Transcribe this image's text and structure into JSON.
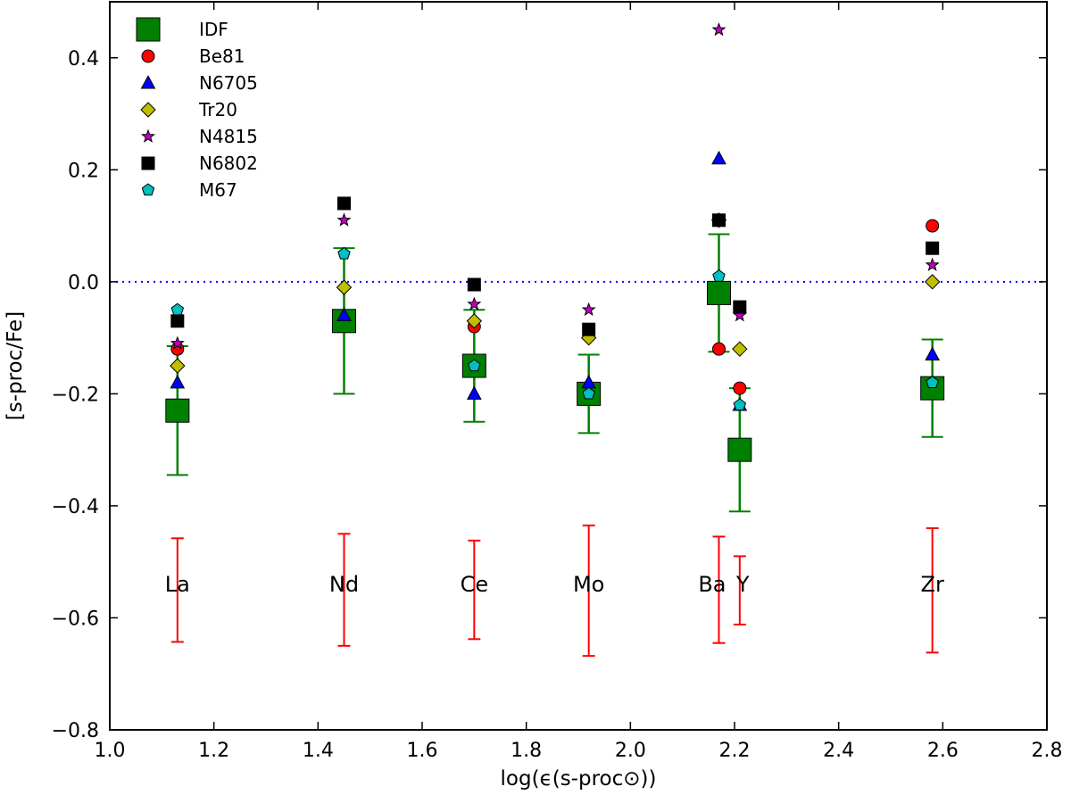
{
  "chart_data": {
    "type": "scatter",
    "title": "",
    "xlabel": "log(ϵ(s-proc⊙))",
    "ylabel": "[s-proc/Fe]",
    "xlim": [
      1.0,
      2.8
    ],
    "ylim": [
      -0.8,
      0.5
    ],
    "xticks": [
      1.0,
      1.2,
      1.4,
      1.6,
      1.8,
      2.0,
      2.2,
      2.4,
      2.6,
      2.8
    ],
    "xtick_labels": [
      "1.0",
      "1.2",
      "1.4",
      "1.6",
      "1.8",
      "2.0",
      "2.2",
      "2.4",
      "2.6",
      "2.8"
    ],
    "yticks": [
      -0.8,
      -0.6,
      -0.4,
      -0.2,
      0.0,
      0.2,
      0.4
    ],
    "ytick_labels": [
      "−0.8",
      "−0.6",
      "−0.4",
      "−0.2",
      "0.0",
      "0.2",
      "0.4"
    ],
    "grid": false,
    "legend_position": "top-left",
    "reference_line": {
      "y": 0.0,
      "style": "dotted",
      "color": "#0000ff"
    },
    "series": [
      {
        "name": "IDF",
        "marker": "square",
        "color": "#008000",
        "stroke": "#000000",
        "size": 26,
        "points": [
          {
            "x": 1.13,
            "y": -0.23,
            "err_low": 0.115,
            "err_high": 0.115
          },
          {
            "x": 1.45,
            "y": -0.07,
            "err_low": 0.13,
            "err_high": 0.13
          },
          {
            "x": 1.7,
            "y": -0.15,
            "err_low": 0.1,
            "err_high": 0.1
          },
          {
            "x": 1.92,
            "y": -0.2,
            "err_low": 0.07,
            "err_high": 0.07
          },
          {
            "x": 2.17,
            "y": -0.02,
            "err_low": 0.105,
            "err_high": 0.105
          },
          {
            "x": 2.21,
            "y": -0.3,
            "err_low": 0.11,
            "err_high": 0.11
          },
          {
            "x": 2.58,
            "y": -0.19,
            "err_low": 0.087,
            "err_high": 0.087
          }
        ]
      },
      {
        "name": "Be81",
        "marker": "circle",
        "color": "#ff0000",
        "stroke": "#000000",
        "size": 14,
        "points": [
          {
            "x": 1.13,
            "y": -0.12
          },
          {
            "x": 1.7,
            "y": -0.08
          },
          {
            "x": 2.17,
            "y": -0.12
          },
          {
            "x": 2.21,
            "y": -0.19
          },
          {
            "x": 2.58,
            "y": 0.1
          }
        ]
      },
      {
        "name": "N6705",
        "marker": "triangle",
        "color": "#0000ff",
        "stroke": "#000000",
        "size": 15,
        "points": [
          {
            "x": 1.13,
            "y": -0.18
          },
          {
            "x": 1.45,
            "y": -0.06
          },
          {
            "x": 1.7,
            "y": -0.2
          },
          {
            "x": 1.92,
            "y": -0.18
          },
          {
            "x": 2.17,
            "y": 0.22
          },
          {
            "x": 2.21,
            "y": -0.22
          },
          {
            "x": 2.58,
            "y": -0.13
          }
        ]
      },
      {
        "name": "Tr20",
        "marker": "diamond",
        "color": "#bfbf00",
        "stroke": "#000000",
        "size": 16,
        "points": [
          {
            "x": 1.13,
            "y": -0.15
          },
          {
            "x": 1.45,
            "y": -0.01
          },
          {
            "x": 1.7,
            "y": -0.07
          },
          {
            "x": 1.92,
            "y": -0.1
          },
          {
            "x": 2.17,
            "y": 0.11
          },
          {
            "x": 2.21,
            "y": -0.12
          },
          {
            "x": 2.58,
            "y": 0.0
          }
        ]
      },
      {
        "name": "N4815",
        "marker": "star",
        "color": "#bf00bf",
        "stroke": "#000000",
        "size": 14,
        "points": [
          {
            "x": 1.13,
            "y": -0.11
          },
          {
            "x": 1.45,
            "y": 0.11
          },
          {
            "x": 1.7,
            "y": -0.04
          },
          {
            "x": 1.92,
            "y": -0.05
          },
          {
            "x": 2.17,
            "y": 0.45
          },
          {
            "x": 2.21,
            "y": -0.06
          },
          {
            "x": 2.58,
            "y": 0.03
          }
        ]
      },
      {
        "name": "N6802",
        "marker": "square",
        "color": "#000000",
        "stroke": "#000000",
        "size": 14,
        "points": [
          {
            "x": 1.13,
            "y": -0.07
          },
          {
            "x": 1.45,
            "y": 0.14
          },
          {
            "x": 1.7,
            "y": -0.005
          },
          {
            "x": 1.92,
            "y": -0.085
          },
          {
            "x": 2.17,
            "y": 0.11
          },
          {
            "x": 2.21,
            "y": -0.045
          },
          {
            "x": 2.58,
            "y": 0.06
          }
        ]
      },
      {
        "name": "M67",
        "marker": "pentagon",
        "color": "#00bfbf",
        "stroke": "#000000",
        "size": 14,
        "points": [
          {
            "x": 1.13,
            "y": -0.05
          },
          {
            "x": 1.45,
            "y": 0.05
          },
          {
            "x": 1.7,
            "y": -0.15
          },
          {
            "x": 1.92,
            "y": -0.2
          },
          {
            "x": 2.17,
            "y": 0.01
          },
          {
            "x": 2.21,
            "y": -0.22
          },
          {
            "x": 2.58,
            "y": -0.18
          }
        ]
      }
    ],
    "element_labels": [
      {
        "text": "La",
        "x": 1.13,
        "y": -0.54
      },
      {
        "text": "Nd",
        "x": 1.45,
        "y": -0.54
      },
      {
        "text": "Ce",
        "x": 1.7,
        "y": -0.54
      },
      {
        "text": "Mo",
        "x": 1.92,
        "y": -0.54
      },
      {
        "text": "Ba",
        "x": 2.17,
        "y": -0.54
      },
      {
        "text": "Y",
        "x": 2.21,
        "y": -0.54
      },
      {
        "text": "Zr",
        "x": 2.58,
        "y": -0.54
      }
    ],
    "red_error_bars": {
      "color": "#ff0000",
      "bars": [
        {
          "x": 1.13,
          "y_low": -0.643,
          "y_high": -0.458
        },
        {
          "x": 1.45,
          "y_low": -0.65,
          "y_high": -0.45
        },
        {
          "x": 1.7,
          "y_low": -0.638,
          "y_high": -0.462
        },
        {
          "x": 1.92,
          "y_low": -0.668,
          "y_high": -0.435
        },
        {
          "x": 2.17,
          "y_low": -0.645,
          "y_high": -0.455
        },
        {
          "x": 2.21,
          "y_low": -0.612,
          "y_high": -0.49
        },
        {
          "x": 2.58,
          "y_low": -0.662,
          "y_high": -0.44
        }
      ]
    }
  }
}
